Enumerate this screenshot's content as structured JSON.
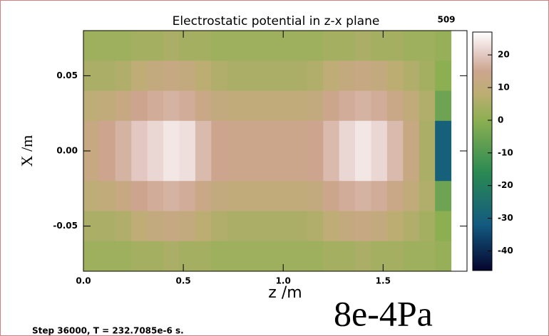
{
  "chart_data": {
    "type": "heatmap",
    "title": "Electrostatic potential in z-x plane",
    "corner_label": "509",
    "x_label": "z /m",
    "y_label": "X /m",
    "footer": "Step   36000, T =  232.7085e-6 s.",
    "annotation": "8e-4Pa",
    "xlim": [
      0,
      1.92
    ],
    "ylim": [
      -0.08,
      0.08
    ],
    "xticks": [
      {
        "value": 0,
        "label": "0.0"
      },
      {
        "value": 0.5,
        "label": "0.5"
      },
      {
        "value": 1,
        "label": "1.0"
      },
      {
        "value": 1.5,
        "label": "1.5"
      }
    ],
    "yticks": [
      -0.05,
      {
        "value": 0,
        "label": "0.00"
      },
      0.05
    ],
    "x_bins": [
      0,
      0.08,
      0.16,
      0.24,
      0.32,
      0.4,
      0.48,
      0.56,
      0.64,
      0.72,
      0.8,
      0.88,
      0.96,
      1.04,
      1.12,
      1.2,
      1.28,
      1.36,
      1.44,
      1.52,
      1.6,
      1.68,
      1.76,
      1.84
    ],
    "y_bins": [
      0.08,
      0.06,
      0.04,
      0.02,
      0,
      -0.02,
      -0.04,
      -0.06,
      -0.08
    ],
    "values": [
      [
        3,
        3,
        3,
        4,
        4,
        5,
        4,
        4,
        3,
        3,
        3,
        3,
        3,
        3,
        3,
        4,
        4,
        5,
        4,
        4,
        3,
        3,
        2
      ],
      [
        5,
        5,
        6,
        9,
        11,
        12,
        11,
        8,
        6,
        5,
        5,
        5,
        5,
        5,
        6,
        9,
        11,
        12,
        11,
        8,
        6,
        4,
        0
      ],
      [
        9,
        10,
        12,
        15,
        16,
        17,
        16,
        13,
        11,
        10,
        10,
        10,
        10,
        10,
        11,
        14,
        16,
        17,
        16,
        13,
        10,
        6,
        -5
      ],
      [
        12,
        15,
        17,
        20,
        22,
        24,
        23,
        18,
        15,
        14,
        14,
        14,
        14,
        14,
        15,
        18,
        22,
        24,
        22,
        18,
        12,
        5,
        -30
      ],
      [
        12,
        15,
        17,
        20,
        22,
        24,
        23,
        18,
        15,
        14,
        14,
        14,
        14,
        14,
        15,
        18,
        22,
        24,
        22,
        18,
        12,
        5,
        -30
      ],
      [
        9,
        10,
        12,
        15,
        16,
        17,
        16,
        13,
        11,
        10,
        10,
        10,
        10,
        10,
        11,
        14,
        16,
        17,
        16,
        13,
        10,
        6,
        -5
      ],
      [
        5,
        5,
        6,
        9,
        11,
        12,
        11,
        8,
        6,
        5,
        5,
        5,
        5,
        5,
        6,
        9,
        11,
        12,
        11,
        8,
        6,
        4,
        0
      ],
      [
        3,
        3,
        3,
        4,
        4,
        5,
        4,
        4,
        3,
        3,
        3,
        3,
        3,
        3,
        3,
        4,
        4,
        5,
        4,
        4,
        3,
        3,
        2
      ]
    ],
    "colorbar": {
      "lim": [
        -46,
        27
      ],
      "ticks": [
        -40,
        -30,
        -20,
        -10,
        0,
        10,
        20
      ]
    },
    "colormap": [
      {
        "value": -46,
        "color": "#05052e"
      },
      {
        "value": -32,
        "color": "#135a80"
      },
      {
        "value": -16,
        "color": "#2a8a52"
      },
      {
        "value": 0,
        "color": "#8caf52"
      },
      {
        "value": 8,
        "color": "#bcae72"
      },
      {
        "value": 15,
        "color": "#cda58e"
      },
      {
        "value": 21,
        "color": "#e6cfca"
      },
      {
        "value": 27,
        "color": "#ffffff"
      }
    ]
  }
}
